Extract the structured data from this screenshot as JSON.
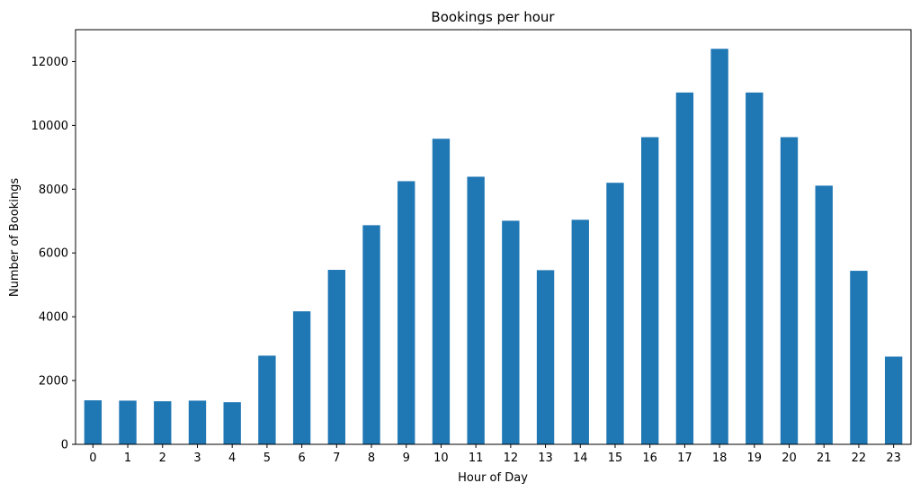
{
  "chart_data": {
    "type": "bar",
    "title": "Bookings per hour",
    "xlabel": "Hour of Day",
    "ylabel": "Number of Bookings",
    "categories": [
      "0",
      "1",
      "2",
      "3",
      "4",
      "5",
      "6",
      "7",
      "8",
      "9",
      "10",
      "11",
      "12",
      "13",
      "14",
      "15",
      "16",
      "17",
      "18",
      "19",
      "20",
      "21",
      "22",
      "23"
    ],
    "values": [
      1380,
      1370,
      1350,
      1370,
      1320,
      2780,
      4170,
      5470,
      6870,
      8250,
      9580,
      8390,
      7010,
      5460,
      7040,
      8200,
      9630,
      11030,
      12400,
      11030,
      9630,
      8110,
      5440,
      2750
    ],
    "ylim": [
      0,
      13000
    ],
    "yticks": [
      0,
      2000,
      4000,
      6000,
      8000,
      10000,
      12000
    ],
    "bar_color": "#1f77b4",
    "grid": false,
    "legend": "none"
  }
}
